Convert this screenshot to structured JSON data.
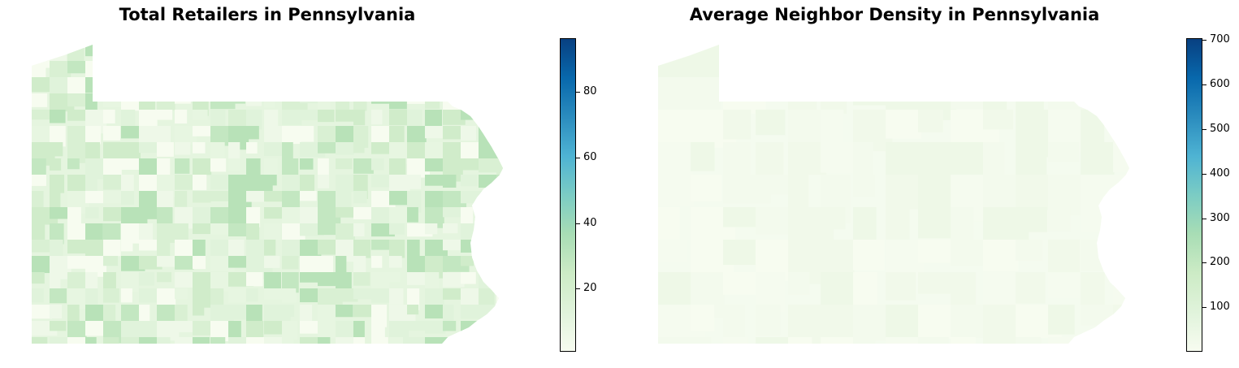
{
  "panels": [
    {
      "title": "Total Retailers in Pennsylvania",
      "metric": "Total Retailers",
      "region": "Pennsylvania",
      "colormap": "GnBu",
      "colorbar": {
        "min": 1,
        "max": 96,
        "ticks": [
          20,
          40,
          60,
          80
        ],
        "tick_labels": [
          "20",
          "40",
          "60",
          "80"
        ]
      },
      "typical_fill": "#e5f5df"
    },
    {
      "title": "Average Neighbor Density in Pennsylvania",
      "metric": "Average Neighbor Density",
      "region": "Pennsylvania",
      "colormap": "GnBu",
      "colorbar": {
        "min": 1,
        "max": 705,
        "ticks": [
          100,
          200,
          300,
          400,
          500,
          600,
          700
        ],
        "tick_labels": [
          "100",
          "200",
          "300",
          "400",
          "500",
          "600",
          "700"
        ]
      },
      "typical_fill": "#f4fbef"
    }
  ],
  "colors": {
    "low": "#f7fcf0",
    "mid": "#7bccc4",
    "high": "#084081"
  }
}
